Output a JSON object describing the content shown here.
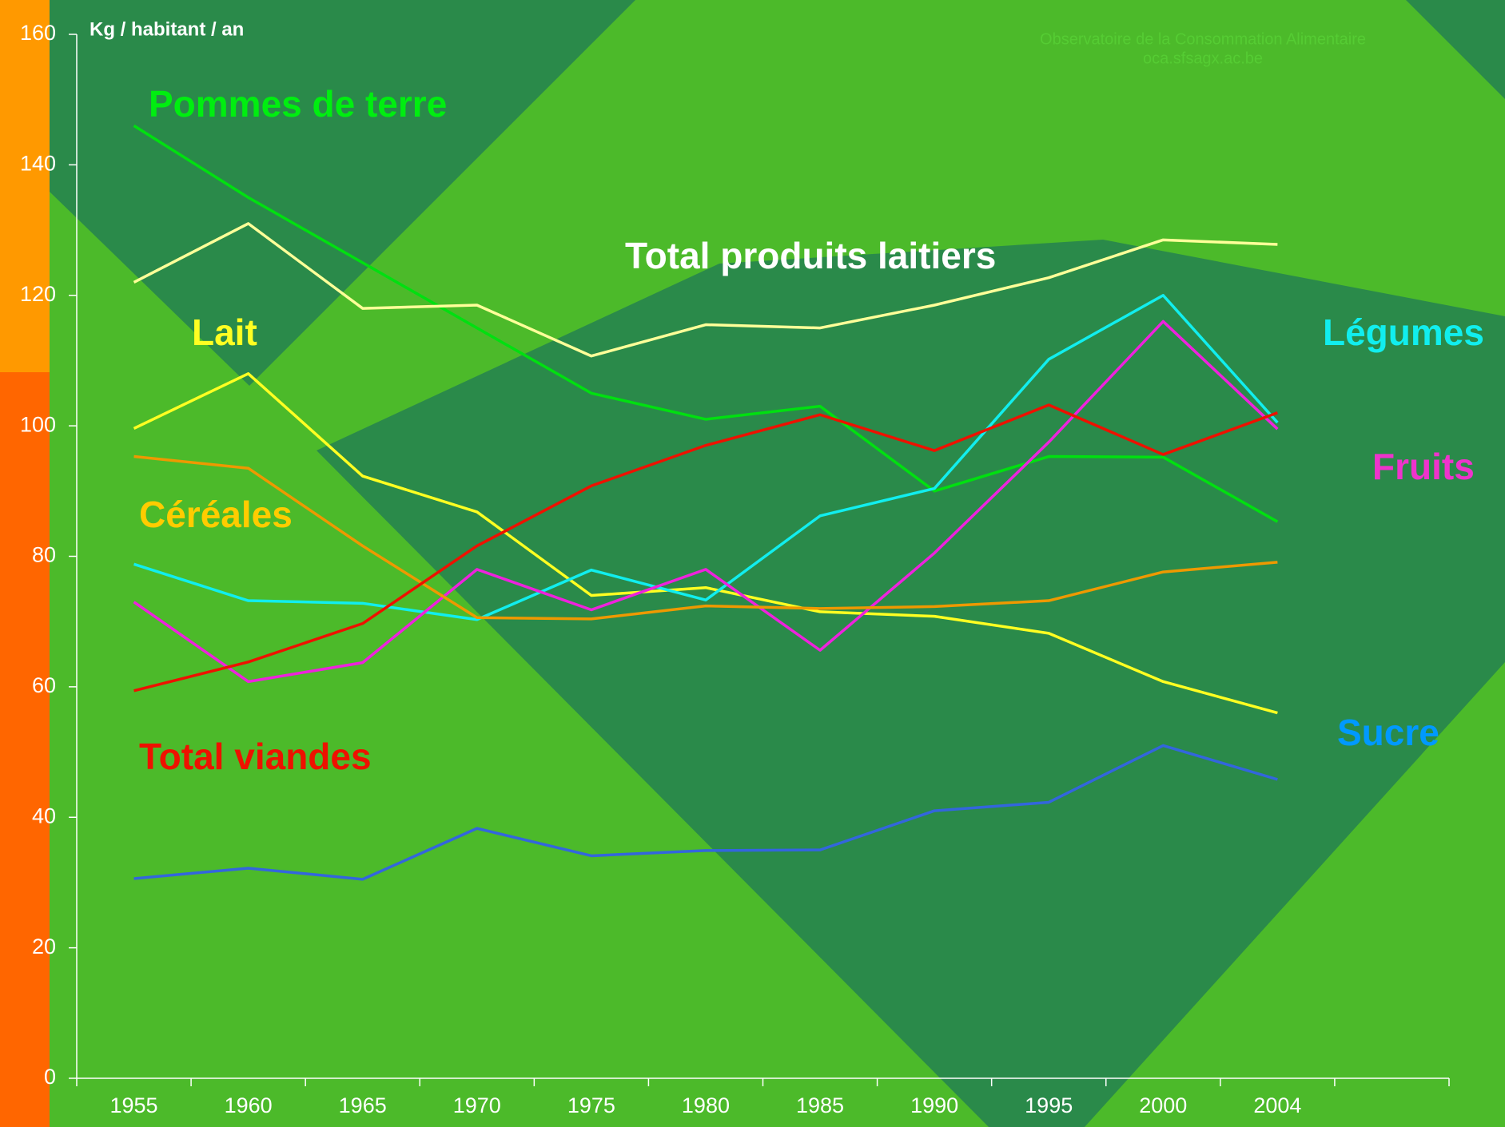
{
  "chart_data": {
    "type": "line",
    "y_axis_label": "Kg / habitant / an",
    "source": [
      "Observatoire de la Consommation Alimentaire",
      "oca.sfsagx.ac.be"
    ],
    "categories": [
      "1955",
      "1960",
      "1965",
      "1970",
      "1975",
      "1980",
      "1985",
      "1990",
      "1995",
      "2000",
      "2004"
    ],
    "ylim": [
      0,
      160
    ],
    "yticks": [
      0,
      20,
      40,
      60,
      80,
      100,
      120,
      140,
      160
    ],
    "series": [
      {
        "name": "Pommes de terre",
        "color": "#00e010",
        "label_color": "#00ee10",
        "values": [
          146,
          135,
          125,
          115,
          105,
          101,
          103,
          90,
          95.3,
          95.2,
          85.3
        ]
      },
      {
        "name": "Total produits laitiers",
        "color": "#ffff99",
        "label_color": "#ffffff",
        "values": [
          122,
          131,
          118,
          118.5,
          110.7,
          115.5,
          115,
          118.5,
          122.7,
          128.5,
          127.8
        ]
      },
      {
        "name": "Lait",
        "color": "#ffff22",
        "label_color": "#ffff22",
        "values": [
          99.6,
          108,
          92.3,
          86.8,
          74,
          75.2,
          71.5,
          70.8,
          68.2,
          60.8,
          56
        ]
      },
      {
        "name": "Légumes",
        "color": "#11eeee",
        "label_color": "#11eeee",
        "values": [
          78.8,
          73.2,
          72.8,
          70.3,
          77.9,
          73.3,
          86.2,
          90.4,
          110.2,
          120,
          100.5
        ]
      },
      {
        "name": "Fruits",
        "color": "#ee22dd",
        "label_color": "#ee33cc",
        "values": [
          73,
          60.8,
          63.7,
          78,
          71.8,
          78,
          65.6,
          80.5,
          97.5,
          116,
          99.5
        ]
      },
      {
        "name": "Céréales",
        "color": "#ee9900",
        "label_color": "#ffcc00",
        "values": [
          95.3,
          93.5,
          81.6,
          70.6,
          70.4,
          72.4,
          72,
          72.3,
          73.2,
          77.6,
          79.1
        ]
      },
      {
        "name": "Sucre",
        "color": "#3366dd",
        "label_color": "#0099ff",
        "values": [
          30.6,
          32.2,
          30.5,
          38.3,
          34.1,
          34.9,
          35,
          41,
          42.3,
          51,
          45.8
        ]
      },
      {
        "name": "Total viandes",
        "color": "#ee1100",
        "label_color": "#ee1100",
        "values": [
          59.4,
          63.8,
          69.7,
          81.6,
          90.8,
          97,
          101.7,
          96.2,
          103.2,
          95.6,
          102
        ]
      }
    ]
  }
}
